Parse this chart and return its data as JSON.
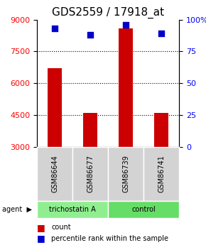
{
  "title": "GDS2559 / 17918_at",
  "samples": [
    "GSM86644",
    "GSM86677",
    "GSM86739",
    "GSM86741"
  ],
  "counts": [
    6700,
    4600,
    8600,
    4600
  ],
  "percentiles": [
    93,
    88,
    96,
    89
  ],
  "ylim_left": [
    3000,
    9000
  ],
  "ylim_right": [
    0,
    100
  ],
  "yticks_left": [
    3000,
    4500,
    6000,
    7500,
    9000
  ],
  "yticks_right": [
    0,
    25,
    50,
    75,
    100
  ],
  "bar_color": "#cc0000",
  "dot_color": "#0000cc",
  "grid_color": "#000000",
  "bg_color": "#ffffff",
  "agent_groups": [
    {
      "label": "trichostatin A",
      "samples": [
        0,
        1
      ],
      "color": "#90ee90"
    },
    {
      "label": "control",
      "samples": [
        2,
        3
      ],
      "color": "#66dd66"
    }
  ],
  "legend_count_label": "count",
  "legend_pct_label": "percentile rank within the sample",
  "agent_label": "agent",
  "title_fontsize": 11,
  "tick_fontsize": 8,
  "label_fontsize": 8
}
